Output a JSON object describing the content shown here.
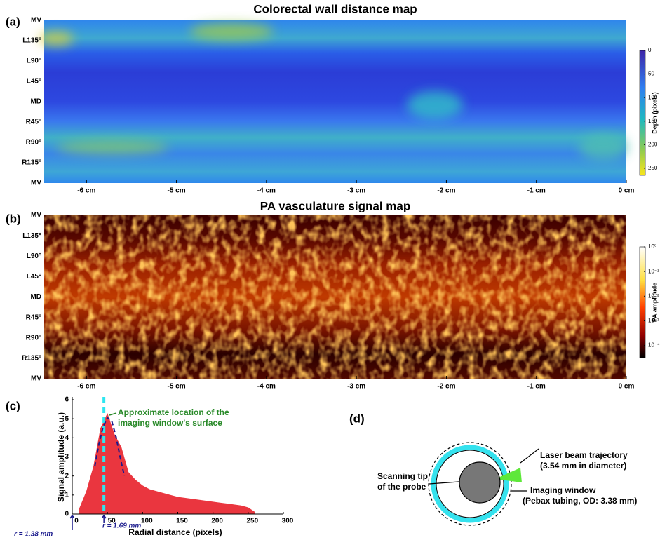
{
  "chart_data": [
    {
      "type": "heatmap",
      "panel_label": "(a)",
      "title": "Colorectal wall distance map",
      "categories": [
        "MV",
        "L135°",
        "L90°",
        "L45°",
        "MD",
        "R45°",
        "R90°",
        "R135°",
        "MV"
      ],
      "xlim": [
        -6.47,
        0
      ],
      "xticks": [
        {
          "value": -6,
          "label": "-6 cm"
        },
        {
          "value": -5,
          "label": "-5 cm"
        },
        {
          "value": -4,
          "label": "-4 cm"
        },
        {
          "value": -3,
          "label": "-3 cm"
        },
        {
          "value": -2,
          "label": "-2 cm"
        },
        {
          "value": -1,
          "label": "-1 cm"
        },
        {
          "value": 0,
          "label": "0 cm"
        }
      ],
      "colorbar": {
        "label": "Depth (pixels)",
        "zlim": [
          0,
          265
        ],
        "zticks": [
          0,
          50,
          100,
          150,
          200,
          250
        ],
        "colormap": "parula"
      }
    },
    {
      "type": "heatmap",
      "panel_label": "(b)",
      "title": "PA vasculature signal map",
      "categories": [
        "MV",
        "L135°",
        "L90°",
        "L45°",
        "MD",
        "R45°",
        "R90°",
        "R135°",
        "MV"
      ],
      "xlim": [
        -6.47,
        0
      ],
      "xticks": [
        {
          "value": -6,
          "label": "-6 cm"
        },
        {
          "value": -5,
          "label": "-5 cm"
        },
        {
          "value": -4,
          "label": "-4 cm"
        },
        {
          "value": -3,
          "label": "-3 cm"
        },
        {
          "value": -2,
          "label": "-2 cm"
        },
        {
          "value": -1,
          "label": "-1 cm"
        },
        {
          "value": 0,
          "label": "0 cm"
        }
      ],
      "colorbar": {
        "label": "PA amplitude",
        "zlim": [
          3.2e-05,
          1
        ],
        "log_scale": true,
        "zticks": [
          {
            "value": 1,
            "label": "10⁰"
          },
          {
            "value": 0.1,
            "label": "10⁻¹"
          },
          {
            "value": 0.01,
            "label": "10⁻²"
          },
          {
            "value": 0.001,
            "label": "10⁻³"
          },
          {
            "value": 0.0001,
            "label": "10⁻⁴"
          }
        ],
        "colormap": "hot"
      }
    },
    {
      "type": "area",
      "panel_label": "(c)",
      "xlabel": "Radial distance (pixels)",
      "ylabel": "Signal amplitude (a.u.)",
      "xlim": [
        0,
        300
      ],
      "xticks": [
        0,
        50,
        100,
        150,
        200,
        250,
        300
      ],
      "ylim": [
        0,
        6
      ],
      "yticks": [
        0,
        1,
        2,
        3,
        4,
        5,
        6
      ],
      "x": [
        10,
        20,
        30,
        40,
        50,
        60,
        70,
        80,
        90,
        100,
        110,
        120,
        130,
        140,
        150,
        160,
        170,
        180,
        190,
        200,
        210,
        220,
        230,
        240,
        250,
        260
      ],
      "values": [
        0.3,
        1.2,
        2.5,
        4.5,
        5.3,
        4.2,
        3.5,
        2.2,
        1.8,
        1.5,
        1.3,
        1.2,
        1.1,
        1.0,
        0.9,
        0.85,
        0.8,
        0.75,
        0.7,
        0.65,
        0.6,
        0.55,
        0.5,
        0.45,
        0.35,
        0.1
      ],
      "color": "#e8202a",
      "fit": {
        "x": [
          32,
          38,
          44,
          50,
          56,
          62,
          68,
          74
        ],
        "values": [
          2.5,
          3.7,
          4.6,
          5.05,
          4.9,
          4.1,
          3.0,
          2.0
        ],
        "color": "#1a1a8c"
      },
      "window_line": {
        "x": 45,
        "color": "#2ee6f0"
      },
      "annotation": [
        "Approximate location of the",
        "imaging window's surface"
      ],
      "r_labels": [
        "r = 1.69 mm",
        "r = 1.38 mm"
      ]
    }
  ],
  "diagram": {
    "panel_label": "(d)",
    "tip": [
      "Scanning tip",
      "of the probe"
    ],
    "laser": [
      "Laser beam trajectory",
      "(3.54 mm in diameter)"
    ],
    "window": [
      "Imaging window",
      "(Pebax tubing, OD: 3.38 mm)"
    ]
  }
}
